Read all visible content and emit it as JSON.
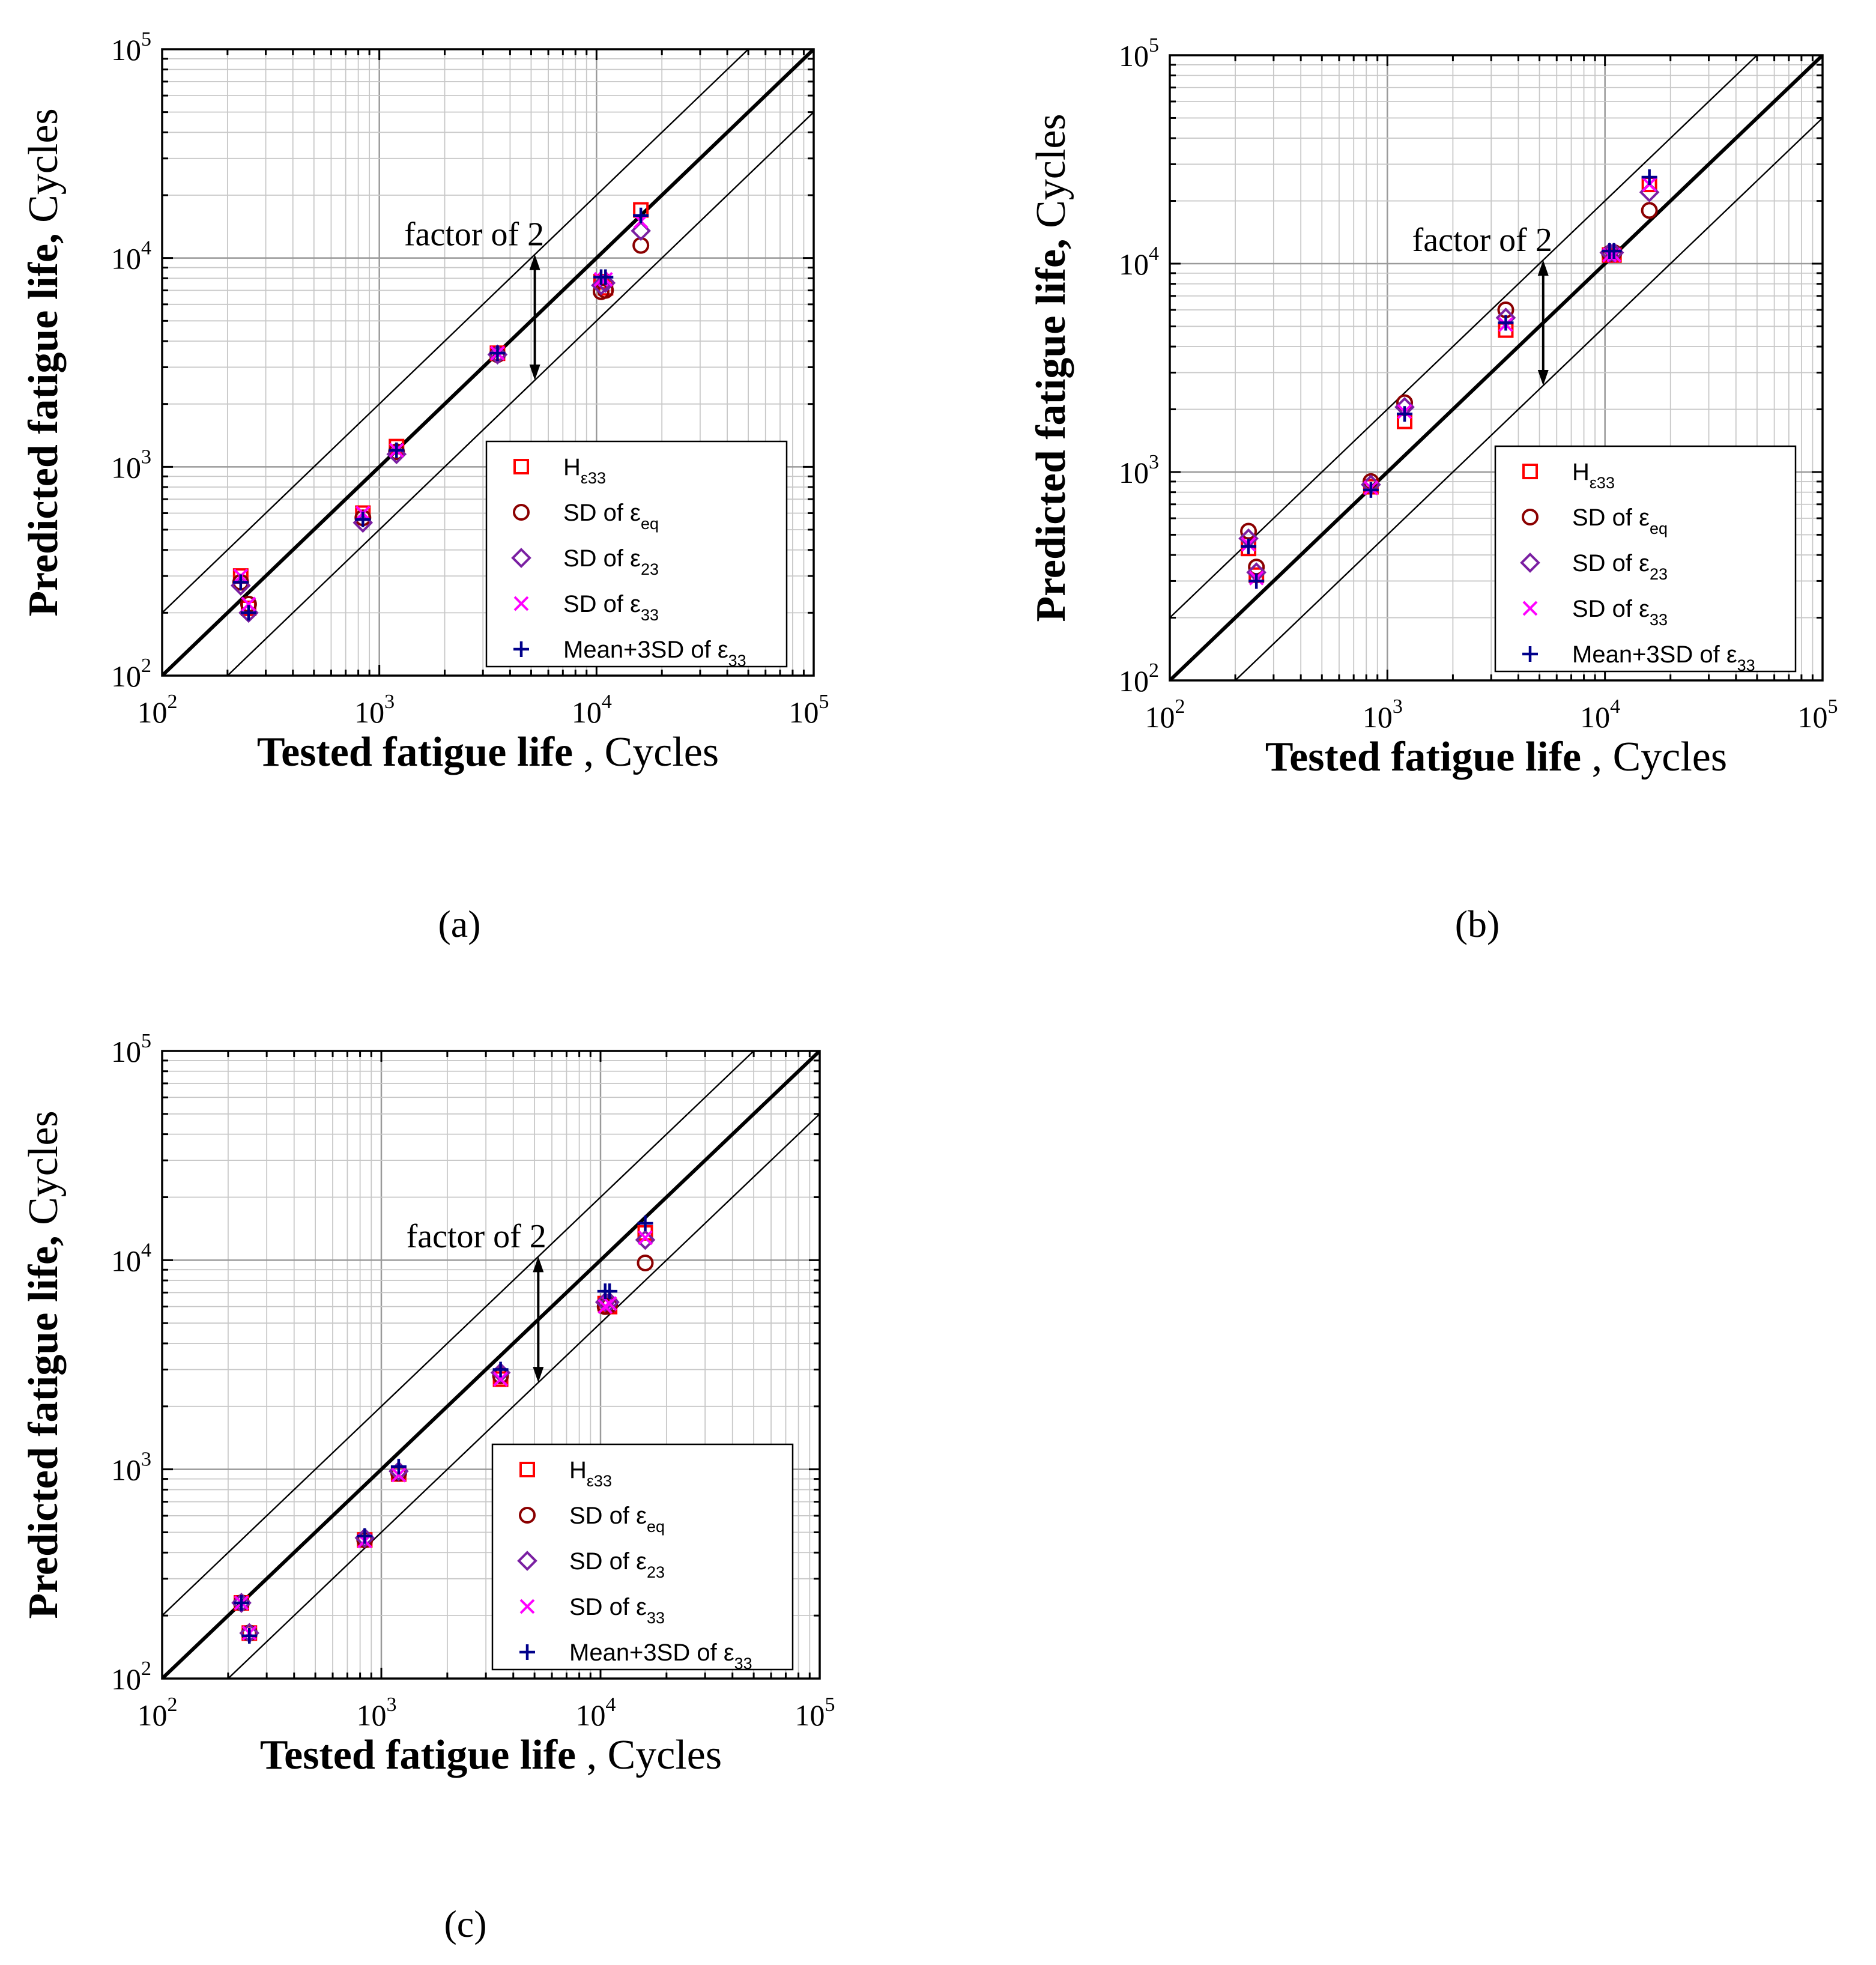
{
  "figure": {
    "panels": [
      "a",
      "b",
      "c"
    ],
    "panel_labels": [
      "(a)",
      "(b)",
      "(c)"
    ]
  },
  "colors": {
    "H_e33": "#ff0000",
    "SD_eeq": "#8b0000",
    "SD_e23": "#7a1fa2",
    "SD_e33": "#ff00ff",
    "Mean3SD_e33": "#00008b",
    "grid": "#c8c8c8",
    "axis": "#000000"
  },
  "chart_data": [
    {
      "type": "scatter",
      "panel": "a",
      "panel_label": "(a)",
      "xscale": "log",
      "yscale": "log",
      "xlim": [
        100,
        100000
      ],
      "ylim": [
        100,
        100000
      ],
      "ylabel_bold": "Predicted fatigue life,",
      "ylabel_rest": " Cycles",
      "xlabel_bold": "Tested fatigue life",
      "xlabel_rest": " , Cycles",
      "xticks": [
        {
          "value": 100,
          "base": "10",
          "exp": "2"
        },
        {
          "value": 1000,
          "base": "10",
          "exp": "3"
        },
        {
          "value": 10000,
          "base": "10",
          "exp": "4"
        },
        {
          "value": 100000,
          "base": "10",
          "exp": "5"
        }
      ],
      "yticks": [
        {
          "value": 100,
          "base": "10",
          "exp": "2"
        },
        {
          "value": 1000,
          "base": "10",
          "exp": "3"
        },
        {
          "value": 10000,
          "base": "10",
          "exp": "4"
        },
        {
          "value": 100000,
          "base": "10",
          "exp": "5"
        }
      ],
      "grid": true,
      "reference_lines": [
        {
          "name": "1:1",
          "factor": 1,
          "style": "thick"
        },
        {
          "name": "upper factor 2",
          "factor": 2,
          "style": "thin"
        },
        {
          "name": "lower factor 2",
          "factor": 0.5,
          "style": "thin"
        }
      ],
      "annotation": {
        "text": "factor of 2",
        "x": 1300,
        "y": 11500,
        "arrow_x": 5200,
        "arrow_from": 10400,
        "arrow_to": 2600
      },
      "legend_position": "bottom-right",
      "series": [
        {
          "key": "H_e33",
          "marker": "square",
          "label_main": "H",
          "label_sub": "ε33",
          "x": [
            230,
            250,
            840,
            1200,
            3500,
            10500,
            11000,
            16000
          ],
          "y": [
            300,
            210,
            600,
            1250,
            3500,
            7700,
            7200,
            17000
          ]
        },
        {
          "key": "SD_eeq",
          "marker": "circle",
          "label_main": "SD of ε",
          "label_sub": "eq",
          "x": [
            230,
            250,
            840,
            1200,
            3500,
            10500,
            11000,
            16000
          ],
          "y": [
            280,
            220,
            570,
            1180,
            3450,
            6900,
            7000,
            11500
          ]
        },
        {
          "key": "SD_e23",
          "marker": "diamond",
          "label_main": "SD of ε",
          "label_sub": "23",
          "x": [
            230,
            250,
            840,
            1200,
            3500,
            10500,
            11000,
            16000
          ],
          "y": [
            270,
            200,
            540,
            1150,
            3450,
            7400,
            7600,
            13500
          ]
        },
        {
          "key": "SD_e33",
          "marker": "x",
          "label_main": "SD of ε",
          "label_sub": "33",
          "x": [
            230,
            250,
            840,
            1200,
            3500,
            10500,
            11000,
            16000
          ],
          "y": [
            300,
            220,
            600,
            1200,
            3500,
            7900,
            7900,
            15000
          ]
        },
        {
          "key": "Mean3SD_e33",
          "marker": "plus",
          "label_main": "Mean+3SD of ε",
          "label_sub": "33",
          "x": [
            230,
            250,
            840,
            1200,
            3500,
            10500,
            11000,
            16000
          ],
          "y": [
            280,
            200,
            560,
            1200,
            3500,
            8100,
            8100,
            16000
          ]
        }
      ]
    },
    {
      "type": "scatter",
      "panel": "b",
      "panel_label": "(b)",
      "xscale": "log",
      "yscale": "log",
      "xlim": [
        100,
        100000
      ],
      "ylim": [
        100,
        100000
      ],
      "ylabel_bold": "Predicted fatigue life,",
      "ylabel_rest": " Cycles",
      "xlabel_bold": "Tested fatigue life",
      "xlabel_rest": " , Cycles",
      "xticks": [
        {
          "value": 100,
          "base": "10",
          "exp": "2"
        },
        {
          "value": 1000,
          "base": "10",
          "exp": "3"
        },
        {
          "value": 10000,
          "base": "10",
          "exp": "4"
        },
        {
          "value": 100000,
          "base": "10",
          "exp": "5"
        }
      ],
      "yticks": [
        {
          "value": 100,
          "base": "10",
          "exp": "2"
        },
        {
          "value": 1000,
          "base": "10",
          "exp": "3"
        },
        {
          "value": 10000,
          "base": "10",
          "exp": "4"
        },
        {
          "value": 100000,
          "base": "10",
          "exp": "5"
        }
      ],
      "grid": true,
      "reference_lines": [
        {
          "name": "1:1",
          "factor": 1,
          "style": "thick"
        },
        {
          "name": "upper factor 2",
          "factor": 2,
          "style": "thin"
        },
        {
          "name": "lower factor 2",
          "factor": 0.5,
          "style": "thin"
        }
      ],
      "annotation": {
        "text": "factor of 2",
        "x": 1300,
        "y": 11500,
        "arrow_x": 5200,
        "arrow_from": 10400,
        "arrow_to": 2600
      },
      "legend_position": "bottom-right",
      "series": [
        {
          "key": "H_e33",
          "marker": "square",
          "label_main": "H",
          "label_sub": "ε33",
          "x": [
            230,
            250,
            840,
            1200,
            3500,
            10500,
            11000,
            16000
          ],
          "y": [
            430,
            320,
            850,
            1750,
            4800,
            11000,
            11000,
            24000
          ]
        },
        {
          "key": "SD_eeq",
          "marker": "circle",
          "label_main": "SD of ε",
          "label_sub": "eq",
          "x": [
            230,
            250,
            840,
            1200,
            3500,
            10500,
            11000,
            16000
          ],
          "y": [
            520,
            350,
            900,
            2150,
            6000,
            11200,
            11300,
            18000
          ]
        },
        {
          "key": "SD_e23",
          "marker": "diamond",
          "label_main": "SD of ε",
          "label_sub": "23",
          "x": [
            230,
            250,
            840,
            1200,
            3500,
            10500,
            11000,
            16000
          ],
          "y": [
            480,
            330,
            870,
            2050,
            5500,
            11300,
            11300,
            22000
          ]
        },
        {
          "key": "SD_e33",
          "marker": "x",
          "label_main": "SD of ε",
          "label_sub": "33",
          "x": [
            230,
            250,
            840,
            1200,
            3500,
            10500,
            11000,
            16000
          ],
          "y": [
            450,
            310,
            840,
            1950,
            5100,
            11000,
            11000,
            24000
          ]
        },
        {
          "key": "Mean3SD_e33",
          "marker": "plus",
          "label_main": "Mean+3SD of ε",
          "label_sub": "33",
          "x": [
            230,
            250,
            840,
            1200,
            3500,
            10500,
            11000,
            16000
          ],
          "y": [
            440,
            300,
            820,
            1900,
            5200,
            11500,
            11500,
            26000
          ]
        }
      ]
    },
    {
      "type": "scatter",
      "panel": "c",
      "panel_label": "(c)",
      "xscale": "log",
      "yscale": "log",
      "xlim": [
        100,
        100000
      ],
      "ylim": [
        100,
        100000
      ],
      "ylabel_bold": "Predicted fatigue life,",
      "ylabel_rest": " Cycles",
      "xlabel_bold": "Tested fatigue life",
      "xlabel_rest": " , Cycles",
      "xticks": [
        {
          "value": 100,
          "base": "10",
          "exp": "2"
        },
        {
          "value": 1000,
          "base": "10",
          "exp": "3"
        },
        {
          "value": 10000,
          "base": "10",
          "exp": "4"
        },
        {
          "value": 100000,
          "base": "10",
          "exp": "5"
        }
      ],
      "yticks": [
        {
          "value": 100,
          "base": "10",
          "exp": "2"
        },
        {
          "value": 1000,
          "base": "10",
          "exp": "3"
        },
        {
          "value": 10000,
          "base": "10",
          "exp": "4"
        },
        {
          "value": 100000,
          "base": "10",
          "exp": "5"
        }
      ],
      "grid": true,
      "reference_lines": [
        {
          "name": "1:1",
          "factor": 1,
          "style": "thick"
        },
        {
          "name": "upper factor 2",
          "factor": 2,
          "style": "thin"
        },
        {
          "name": "lower factor 2",
          "factor": 0.5,
          "style": "thin"
        }
      ],
      "annotation": {
        "text": "factor of 2",
        "x": 1300,
        "y": 11500,
        "arrow_x": 5200,
        "arrow_from": 10400,
        "arrow_to": 2600
      },
      "legend_position": "bottom-right",
      "series": [
        {
          "key": "H_e33",
          "marker": "square",
          "label_main": "H",
          "label_sub": "ε33",
          "x": [
            230,
            250,
            840,
            1200,
            3500,
            10500,
            11000,
            16000
          ],
          "y": [
            230,
            165,
            460,
            950,
            2700,
            6200,
            6000,
            13500
          ]
        },
        {
          "key": "SD_eeq",
          "marker": "circle",
          "label_main": "SD of ε",
          "label_sub": "eq",
          "x": [
            230,
            250,
            840,
            1200,
            3500,
            10500,
            11000,
            16000
          ],
          "y": [
            230,
            165,
            460,
            960,
            2800,
            6000,
            6100,
            9700
          ]
        },
        {
          "key": "SD_e23",
          "marker": "diamond",
          "label_main": "SD of ε",
          "label_sub": "23",
          "x": [
            230,
            250,
            840,
            1200,
            3500,
            10500,
            11000,
            16000
          ],
          "y": [
            230,
            165,
            470,
            980,
            2900,
            6300,
            6300,
            12500
          ]
        },
        {
          "key": "SD_e33",
          "marker": "x",
          "label_main": "SD of ε",
          "label_sub": "33",
          "x": [
            230,
            250,
            840,
            1200,
            3500,
            10500,
            11000,
            16000
          ],
          "y": [
            230,
            165,
            455,
            940,
            2700,
            6000,
            6200,
            12800
          ]
        },
        {
          "key": "Mean3SD_e33",
          "marker": "plus",
          "label_main": "Mean+3SD of ε",
          "label_sub": "33",
          "x": [
            230,
            250,
            840,
            1200,
            3500,
            10500,
            11000,
            16000
          ],
          "y": [
            230,
            160,
            480,
            1030,
            3000,
            7100,
            7100,
            15000
          ]
        }
      ]
    }
  ]
}
